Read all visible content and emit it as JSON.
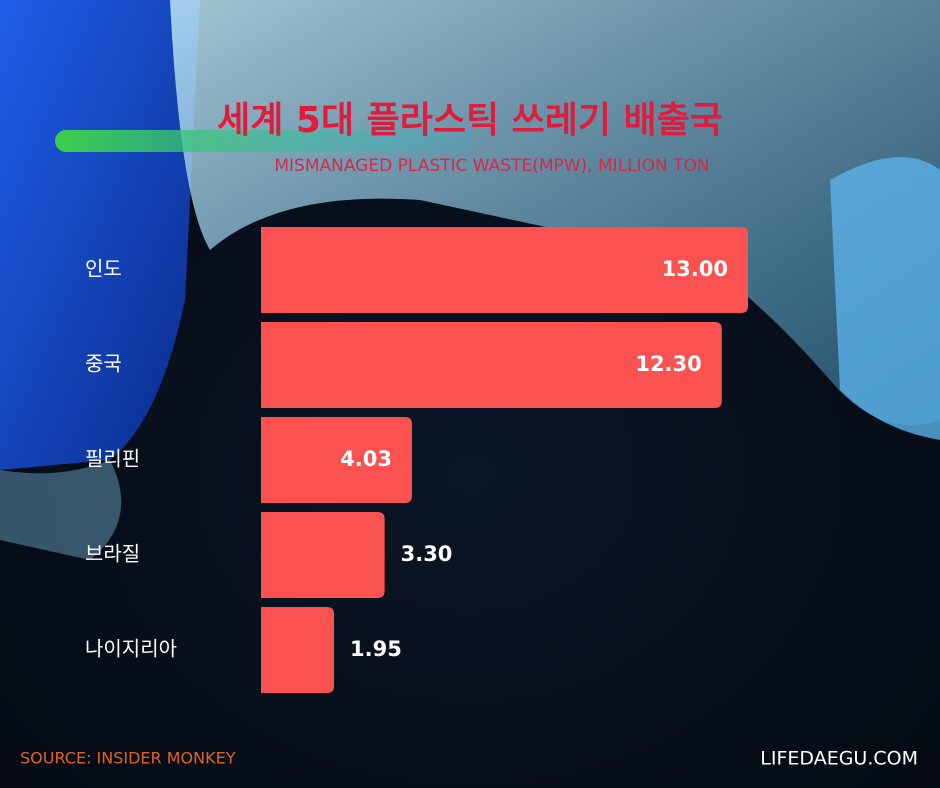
{
  "chart_data": {
    "type": "bar",
    "orientation": "horizontal",
    "title": "세계 5대 플라스틱 쓰레기 배출국",
    "subtitle": "MISMANAGED PLASTIC WASTE(MPW), MILLION TON",
    "categories": [
      "인도",
      "중국",
      "필리핀",
      "브라질",
      "나이지리아"
    ],
    "values": [
      13,
      12.3,
      4.03,
      3.3,
      1.95
    ],
    "value_labels": [
      "13.00",
      "12.30",
      "4.03",
      "3.30",
      "1.95"
    ],
    "color": "#fa5250",
    "source": "SOURCE: INSIDER MONKEY",
    "site": "LIFEDAEGU.COM"
  }
}
